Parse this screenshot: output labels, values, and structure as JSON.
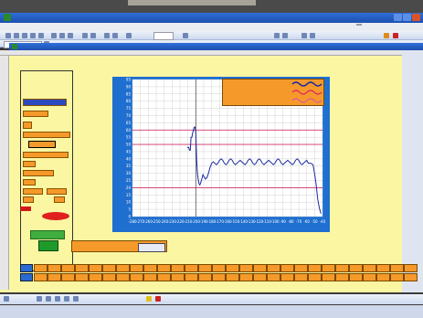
{
  "window": {
    "title": ""
  },
  "inner_window": {
    "title": ""
  },
  "menubar": {
    "items": [
      "",
      "",
      "",
      "",
      "",
      "",
      "",
      "",
      "",
      ""
    ],
    "zoom": "",
    "help_box": ""
  },
  "inner_menu": {
    "items": [
      "",
      "",
      "",
      "",
      "",
      ""
    ]
  },
  "left_panel": {
    "lines": [
      "",
      "",
      "",
      ""
    ],
    "field_labels": [
      "",
      "",
      "",
      "",
      "",
      "",
      "",
      ""
    ],
    "value_box": "",
    "start_button": ""
  },
  "legend": {
    "entries": [
      "",
      "",
      ""
    ]
  },
  "cell_info": {
    "label": "",
    "value": ""
  },
  "right_labels": [
    "",
    ""
  ],
  "chart_data": {
    "type": "line",
    "title": "",
    "xlabel": "",
    "ylabel": "",
    "xlim": [
      -280,
      -40
    ],
    "ylim": [
      0,
      95
    ],
    "x_ticks": [
      -280,
      -270,
      -260,
      -250,
      -240,
      -230,
      -220,
      -210,
      -200,
      -190,
      -180,
      -170,
      -160,
      -150,
      -140,
      -130,
      -120,
      -110,
      -100,
      -90,
      -80,
      -70,
      -60,
      -50,
      -40
    ],
    "y_ticks": [
      0,
      5,
      10,
      15,
      20,
      25,
      30,
      35,
      40,
      45,
      50,
      55,
      60,
      65,
      70,
      75,
      80,
      85,
      90,
      95
    ],
    "reference_lines": [
      {
        "y": 60,
        "color": "#d0306a"
      },
      {
        "y": 50,
        "color": "#d0306a"
      },
      {
        "y": 20,
        "color": "#d0306a"
      }
    ],
    "vertical_marker": {
      "x": -200
    },
    "annotations": [
      {
        "text": "",
        "x": -214,
        "y": 51
      },
      {
        "text": "",
        "x": -62,
        "y": 51
      }
    ],
    "series": [
      {
        "color": "#1a2aa0",
        "x": [
          -211,
          -209,
          -208,
          -207,
          -206,
          -205,
          -204,
          -203,
          -202,
          -201,
          -200,
          -199,
          -198,
          -197,
          -196,
          -195,
          -194,
          -193,
          -192,
          -191,
          -190,
          -188,
          -186,
          -184,
          -182,
          -180,
          -178,
          -176,
          -174,
          -172,
          -170,
          -168,
          -166,
          -164,
          -162,
          -160,
          -158,
          -156,
          -154,
          -152,
          -150,
          -148,
          -146,
          -144,
          -142,
          -140,
          -138,
          -136,
          -134,
          -132,
          -130,
          -128,
          -126,
          -124,
          -122,
          -120,
          -118,
          -116,
          -114,
          -112,
          -110,
          -108,
          -106,
          -104,
          -102,
          -100,
          -98,
          -96,
          -94,
          -92,
          -90,
          -88,
          -86,
          -84,
          -82,
          -80,
          -78,
          -76,
          -74,
          -72,
          -70,
          -68,
          -66,
          -64,
          -62,
          -60,
          -58,
          -55,
          -52,
          -50,
          -48,
          -46,
          -44,
          -42
        ],
        "y": [
          48,
          48,
          46,
          46,
          55,
          55,
          58,
          60,
          62,
          62,
          58,
          40,
          30,
          26,
          23,
          22,
          23,
          25,
          27,
          29,
          28,
          26,
          27,
          30,
          34,
          37,
          38,
          37,
          36,
          37,
          39,
          40,
          39,
          37,
          36,
          37,
          39,
          40,
          39,
          37,
          36,
          37,
          38,
          39,
          38,
          37,
          36,
          37,
          39,
          40,
          39,
          37,
          36,
          37,
          39,
          40,
          39,
          37,
          36,
          37,
          38,
          39,
          38,
          37,
          36,
          37,
          39,
          40,
          39,
          37,
          36,
          37,
          38,
          39,
          38,
          37,
          36,
          37,
          39,
          40,
          39,
          37,
          36,
          37,
          38,
          39,
          37,
          37,
          36,
          30,
          22,
          12,
          6,
          2
        ]
      }
    ]
  },
  "data_table": {
    "row_labels": [
      "",
      ""
    ],
    "cells_row1": [
      "",
      "",
      "",
      "",
      "",
      "",
      "",
      "",
      "",
      "",
      "",
      "",
      "",
      "",
      "",
      "",
      "",
      "",
      "",
      "",
      "",
      "",
      "",
      "",
      "",
      "",
      "",
      ""
    ],
    "cells_row2": [
      "",
      "",
      "",
      "",
      "",
      "",
      "",
      "",
      "",
      "",
      "",
      "",
      "",
      "",
      "",
      "",
      "",
      "",
      "",
      "",
      "",
      "",
      "",
      "",
      "",
      "",
      "",
      ""
    ]
  },
  "status": {
    "left": "",
    "right": ""
  },
  "colors": {
    "sheet_bg": "#fbf6a2",
    "chart_frame": "#1f6fd0",
    "legend_bg": "#f59a2a",
    "series_line": "#1a2aa0",
    "ref_line": "#d0306a"
  }
}
